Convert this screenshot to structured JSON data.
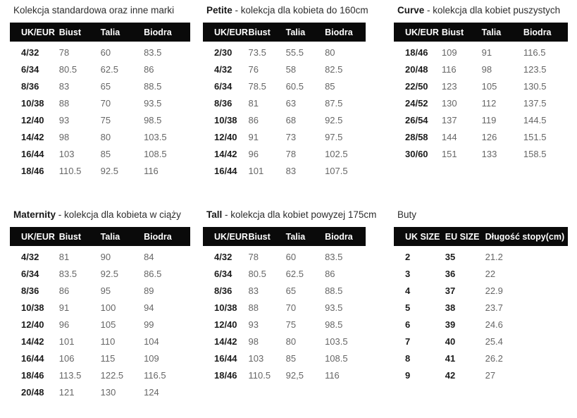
{
  "colors": {
    "header_bg": "#0a0a0a",
    "header_text": "#ffffff",
    "size_label_text": "#1c1c1c",
    "value_text": "#666666",
    "background": "#ffffff"
  },
  "tables": [
    {
      "id": "standard",
      "title_bold": "",
      "title_rest": "Kolekcja standardowa oraz inne marki",
      "columns": [
        "UK/EUR",
        "Biust",
        "Talia",
        "Biodra"
      ],
      "bold_columns": [
        0
      ],
      "rows": [
        [
          "4/32",
          "78",
          "60",
          "83.5"
        ],
        [
          "6/34",
          "80.5",
          "62.5",
          "86"
        ],
        [
          "8/36",
          "83",
          "65",
          "88.5"
        ],
        [
          "10/38",
          "88",
          "70",
          "93.5"
        ],
        [
          "12/40",
          "93",
          "75",
          "98.5"
        ],
        [
          "14/42",
          "98",
          "80",
          "103.5"
        ],
        [
          "16/44",
          "103",
          "85",
          "108.5"
        ],
        [
          "18/46",
          "110.5",
          "92.5",
          "116"
        ]
      ]
    },
    {
      "id": "petite",
      "title_bold": "Petite",
      "title_rest": " - kolekcja dla kobieta do 160cm",
      "columns": [
        "UK/EUR",
        "Biust",
        "Talia",
        "Biodra"
      ],
      "bold_columns": [
        0
      ],
      "rows": [
        [
          "2/30",
          "73.5",
          "55.5",
          "80"
        ],
        [
          "4/32",
          "76",
          "58",
          "82.5"
        ],
        [
          "6/34",
          "78.5",
          "60.5",
          "85"
        ],
        [
          "8/36",
          "81",
          "63",
          "87.5"
        ],
        [
          "10/38",
          "86",
          "68",
          "92.5"
        ],
        [
          "12/40",
          "91",
          "73",
          "97.5"
        ],
        [
          "14/42",
          "96",
          "78",
          "102.5"
        ],
        [
          "16/44",
          "101",
          "83",
          "107.5"
        ]
      ]
    },
    {
      "id": "curve",
      "title_bold": "Curve",
      "title_rest": " - kolekcja dla kobiet puszystych",
      "columns": [
        "UK/EUR",
        "Biust",
        "Talia",
        "Biodra"
      ],
      "bold_columns": [
        0
      ],
      "rows": [
        [
          "18/46",
          "109",
          "91",
          "116.5"
        ],
        [
          "20/48",
          "116",
          "98",
          "123.5"
        ],
        [
          "22/50",
          "123",
          "105",
          "130.5"
        ],
        [
          "24/52",
          "130",
          "112",
          "137.5"
        ],
        [
          "26/54",
          "137",
          "119",
          "144.5"
        ],
        [
          "28/58",
          "144",
          "126",
          "151.5"
        ],
        [
          "30/60",
          "151",
          "133",
          "158.5"
        ]
      ]
    },
    {
      "id": "maternity",
      "title_bold": "Maternity",
      "title_rest": " - kolekcja dla kobieta w ciąży",
      "columns": [
        "UK/EUR",
        "Biust",
        "Talia",
        "Biodra"
      ],
      "bold_columns": [
        0
      ],
      "rows": [
        [
          "4/32",
          "81",
          "90",
          "84"
        ],
        [
          "6/34",
          "83.5",
          "92.5",
          "86.5"
        ],
        [
          "8/36",
          "86",
          "95",
          "89"
        ],
        [
          "10/38",
          "91",
          "100",
          "94"
        ],
        [
          "12/40",
          "96",
          "105",
          "99"
        ],
        [
          "14/42",
          "101",
          "110",
          "104"
        ],
        [
          "16/44",
          "106",
          "115",
          "109"
        ],
        [
          "18/46",
          "113.5",
          "122.5",
          "116.5"
        ],
        [
          "20/48",
          "121",
          "130",
          "124"
        ]
      ]
    },
    {
      "id": "tall",
      "title_bold": "Tall",
      "title_rest": " - kolekcja dla kobiet powyzej 175cm",
      "columns": [
        "UK/EUR",
        "Biust",
        "Talia",
        "Biodra"
      ],
      "bold_columns": [
        0
      ],
      "rows": [
        [
          "4/32",
          "78",
          "60",
          "83.5"
        ],
        [
          "6/34",
          "80.5",
          "62.5",
          "86"
        ],
        [
          "8/36",
          "83",
          "65",
          "88.5"
        ],
        [
          "10/38",
          "88",
          "70",
          "93.5"
        ],
        [
          "12/40",
          "93",
          "75",
          "98.5"
        ],
        [
          "14/42",
          "98",
          "80",
          "103.5"
        ],
        [
          "16/44",
          "103",
          "85",
          "108.5"
        ],
        [
          "18/46",
          "110.5",
          "92,5",
          "116"
        ]
      ]
    },
    {
      "id": "buty",
      "title_bold": "",
      "title_rest": "Buty",
      "columns": [
        "UK SIZE",
        "EU SIZE",
        "Długość stopy(cm)"
      ],
      "bold_columns": [
        0,
        1
      ],
      "rows": [
        [
          "2",
          "35",
          "21.2"
        ],
        [
          "3",
          "36",
          "22"
        ],
        [
          "4",
          "37",
          "22.9"
        ],
        [
          "5",
          "38",
          "23.7"
        ],
        [
          "6",
          "39",
          "24.6"
        ],
        [
          "7",
          "40",
          "25.4"
        ],
        [
          "8",
          "41",
          "26.2"
        ],
        [
          "9",
          "42",
          "27"
        ]
      ]
    }
  ]
}
